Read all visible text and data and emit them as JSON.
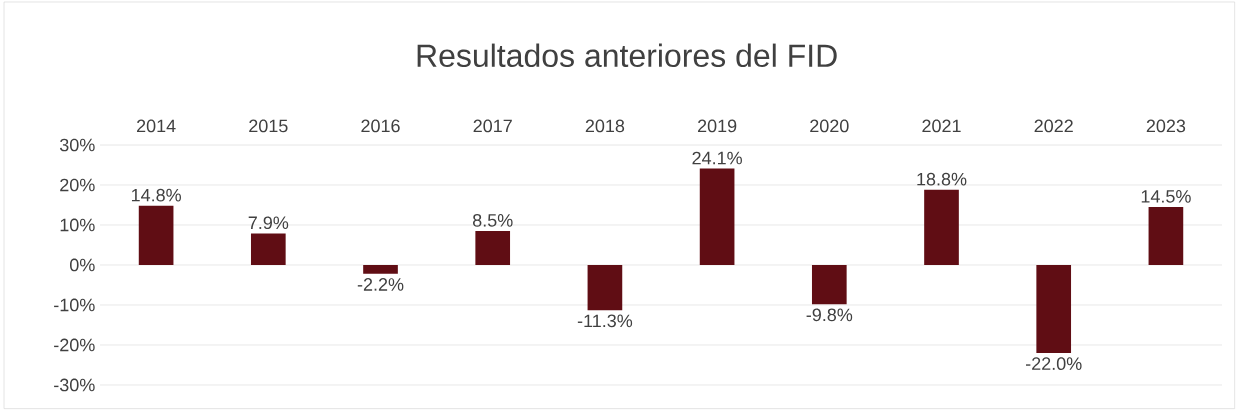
{
  "chart_data": {
    "type": "bar",
    "title": "Resultados anteriores del FID",
    "categories": [
      "2014",
      "2015",
      "2016",
      "2017",
      "2018",
      "2019",
      "2020",
      "2021",
      "2022",
      "2023"
    ],
    "values": [
      14.8,
      7.9,
      -2.2,
      8.5,
      -11.3,
      24.1,
      -9.8,
      18.8,
      -22.0,
      14.5
    ],
    "value_labels": [
      "14.8%",
      "7.9%",
      "-2.2%",
      "8.5%",
      "-11.3%",
      "24.1%",
      "-9.8%",
      "18.8%",
      "-22.0%",
      "14.5%"
    ],
    "color": "#600d14",
    "ylim": [
      -30,
      30
    ],
    "yticks": [
      {
        "value": -30,
        "label": "-30%"
      },
      {
        "value": -20,
        "label": "-20%"
      },
      {
        "value": -10,
        "label": "-10%"
      },
      {
        "value": 0,
        "label": "0%"
      },
      {
        "value": 10,
        "label": "10%"
      },
      {
        "value": 20,
        "label": "20%"
      },
      {
        "value": 30,
        "label": "30%"
      }
    ],
    "grid": "y"
  }
}
